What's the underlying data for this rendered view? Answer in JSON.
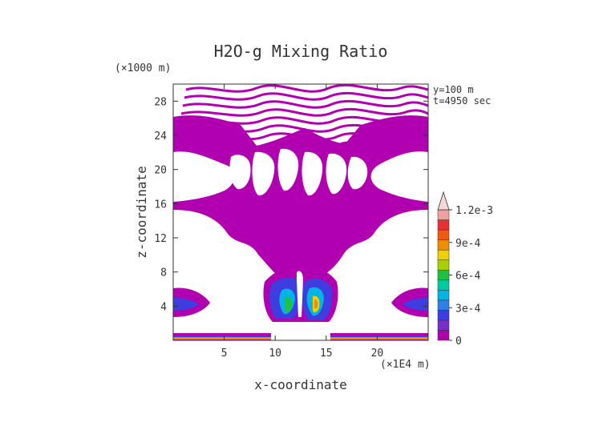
{
  "chart_data": {
    "type": "heatmap",
    "title": "H2O-g Mixing Ratio",
    "xlabel": "x-coordinate",
    "ylabel": "z-coordinate",
    "x_unit": "(×1E4 m)",
    "y_unit": "(×1000 m)",
    "annotations": [
      "y=100 m",
      "t=4950 sec"
    ],
    "xlim": [
      0,
      25
    ],
    "ylim": [
      0,
      30
    ],
    "x_ticks": [
      5,
      10,
      15,
      20
    ],
    "y_ticks": [
      4,
      8,
      12,
      16,
      20,
      24,
      28
    ],
    "colorbar": {
      "ticks": [
        0,
        0.0003,
        0.0006,
        0.0009,
        0.0012
      ],
      "tick_labels": [
        "0",
        "3e-4",
        "6e-4",
        "9e-4",
        "1.2e-3"
      ],
      "levels": [
        0,
        0.0001,
        0.0002,
        0.0003,
        0.0004,
        0.0005,
        0.0006,
        0.0007,
        0.0008,
        0.0009,
        0.001,
        0.0011,
        0.0012
      ],
      "colors": [
        "#b000b0",
        "#7a2cd0",
        "#3d3de0",
        "#2f7fe8",
        "#00b4e6",
        "#00c8a0",
        "#20c040",
        "#a8d000",
        "#f0d000",
        "#f08c00",
        "#f05a10",
        "#e83030",
        "#f0a0a0",
        "#f6d8d8"
      ]
    },
    "contour_colors": {
      "background": "#ffffff",
      "field": "#b000b0",
      "accent_blue": "#3d3de0",
      "accent_cyan": "#00b4e6",
      "accent_green": "#20c040",
      "accent_orange": "#f08c00"
    }
  }
}
